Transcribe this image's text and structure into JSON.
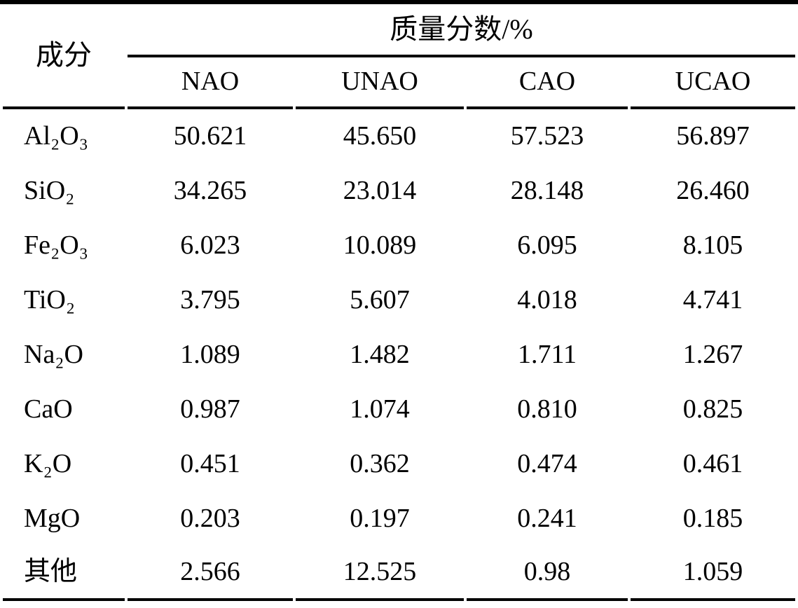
{
  "page": {
    "background_color": "#ffffff",
    "text_color": "#000000",
    "rule_color": "#000000"
  },
  "table": {
    "component_header": "成分",
    "group_header": "质量分数/%",
    "sample_headers": [
      "NAO",
      "UNAO",
      "CAO",
      "UCAO"
    ],
    "rows": [
      {
        "component": "Al₂O₃",
        "values": [
          "50.621",
          "45.650",
          "57.523",
          "56.897"
        ]
      },
      {
        "component": "SiO₂",
        "values": [
          "34.265",
          "23.014",
          "28.148",
          "26.460"
        ]
      },
      {
        "component": "Fe₂O₃",
        "values": [
          "6.023",
          "10.089",
          "6.095",
          "8.105"
        ]
      },
      {
        "component": "TiO₂",
        "values": [
          "3.795",
          "5.607",
          "4.018",
          "4.741"
        ]
      },
      {
        "component": "Na₂O",
        "values": [
          "1.089",
          "1.482",
          "1.711",
          "1.267"
        ]
      },
      {
        "component": "CaO",
        "values": [
          "0.987",
          "1.074",
          "0.810",
          "0.825"
        ]
      },
      {
        "component": "K₂O",
        "values": [
          "0.451",
          "0.362",
          "0.474",
          "0.461"
        ]
      },
      {
        "component": "MgO",
        "values": [
          "0.203",
          "0.197",
          "0.241",
          "0.185"
        ]
      },
      {
        "component": "其他",
        "values": [
          "2.566",
          "12.525",
          "0.98",
          "1.059"
        ]
      }
    ]
  },
  "chart_data": {
    "type": "table",
    "title": "质量分数/%",
    "row_header": "成分",
    "columns": [
      "成分",
      "NAO",
      "UNAO",
      "CAO",
      "UCAO"
    ],
    "rows": [
      [
        "Al₂O₃",
        50.621,
        45.65,
        57.523,
        56.897
      ],
      [
        "SiO₂",
        34.265,
        23.014,
        28.148,
        26.46
      ],
      [
        "Fe₂O₃",
        6.023,
        10.089,
        6.095,
        8.105
      ],
      [
        "TiO₂",
        3.795,
        5.607,
        4.018,
        4.741
      ],
      [
        "Na₂O",
        1.089,
        1.482,
        1.711,
        1.267
      ],
      [
        "CaO",
        0.987,
        1.074,
        0.81,
        0.825
      ],
      [
        "K₂O",
        0.451,
        0.362,
        0.474,
        0.461
      ],
      [
        "MgO",
        0.203,
        0.197,
        0.241,
        0.185
      ],
      [
        "其他",
        2.566,
        12.525,
        0.98,
        1.059
      ]
    ]
  }
}
